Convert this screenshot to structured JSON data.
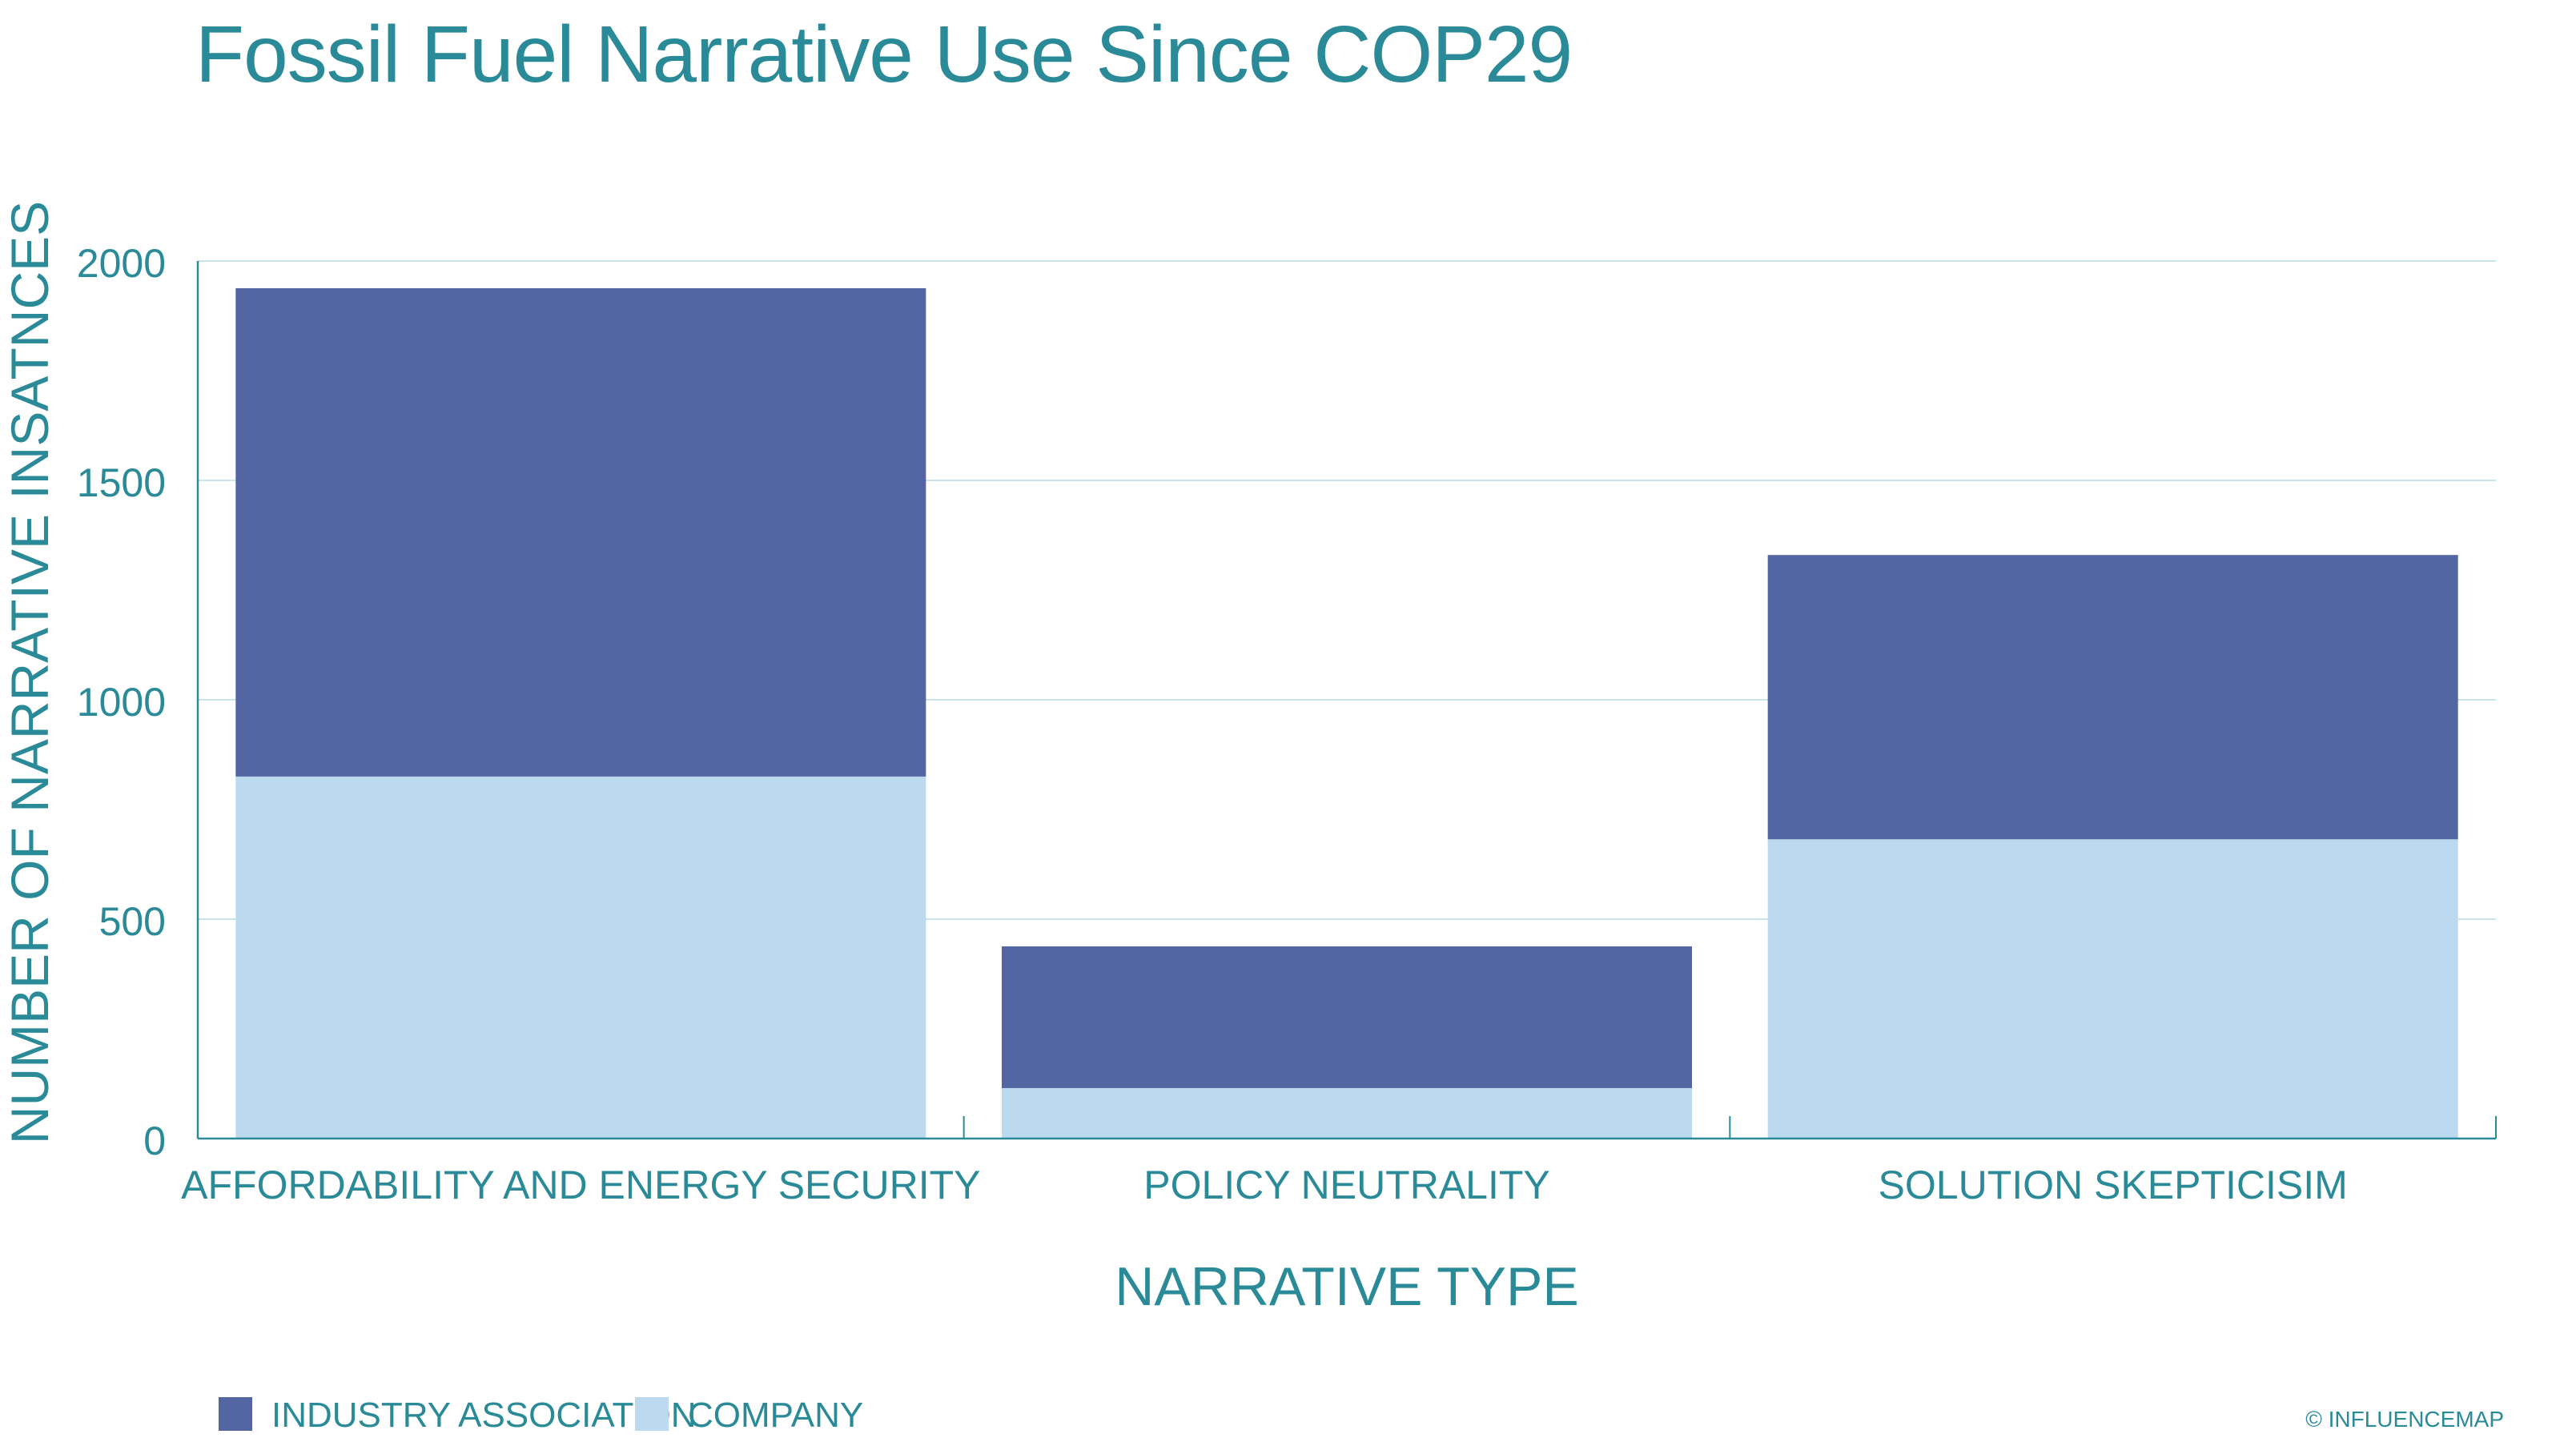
{
  "colors": {
    "text": "#2a8a98",
    "industry_association": "#5465a3",
    "company": "#bcdaef",
    "grid": "#c9e3ea",
    "axis": "#2a8a98"
  },
  "chart_data": {
    "type": "bar",
    "stacked": true,
    "title": "Fossil Fuel Narrative Use Since COP29",
    "xlabel": "NARRATIVE TYPE",
    "ylabel": "NUMBER OF NARRATIVE INSATNCES",
    "ylim": [
      0,
      2000
    ],
    "yticks": [
      0,
      500,
      1000,
      1500,
      2000
    ],
    "grid": true,
    "categories": [
      "AFFORDABILITY AND ENERGY SECURITY",
      "POLICY NEUTRALITY",
      "SOLUTION SKEPTICISIM"
    ],
    "series": [
      {
        "name": "COMPANY",
        "color": "#bcdaef",
        "values": [
          825,
          115,
          682
        ]
      },
      {
        "name": "INDUSTRY ASSOCIATION",
        "color": "#5465a3",
        "values": [
          1113,
          323,
          648
        ]
      }
    ],
    "legend": {
      "position": "bottom-left",
      "order": [
        "INDUSTRY ASSOCIATION",
        "COMPANY"
      ]
    }
  },
  "credit": "© INFLUENCEMAP"
}
